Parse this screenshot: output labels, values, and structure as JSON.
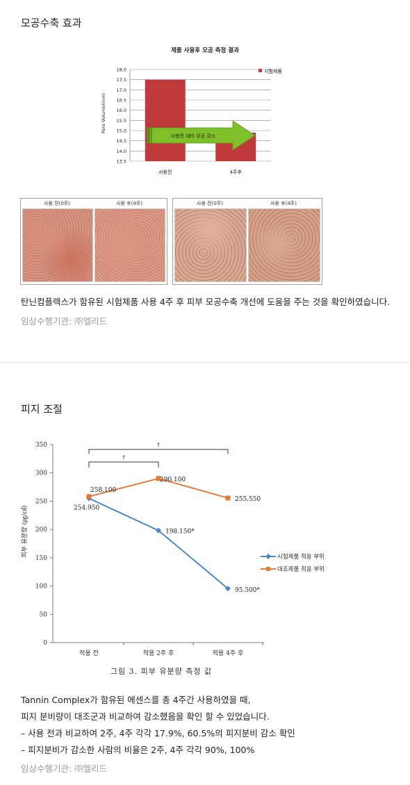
{
  "section1": {
    "title": "모공수축 효과",
    "chart_data": {
      "type": "bar",
      "title": "제품 사용후 모공 측정 결과",
      "ylabel": "Pore Volume(mm)",
      "categories": [
        "사용전",
        "4주후"
      ],
      "series": [
        {
          "name": "시험제품",
          "values": [
            17.5,
            14.9
          ]
        }
      ],
      "ylim": [
        13.5,
        18.0
      ],
      "yticks": [
        "18.0",
        "17.5",
        "17.0",
        "16.5",
        "16.0",
        "15.5",
        "15.0",
        "14.5",
        "14.0",
        "13.5"
      ],
      "annotation": "사용전 대비 모공 감소",
      "bar_color": "#c0393b",
      "arrow_color": "#7fbf2a",
      "legend_position": "top-right"
    },
    "photos": {
      "caption_before": "사용 전(0주)",
      "caption_after": "사용 후(4주)"
    },
    "description": "탄닌컴플렉스가 함유된 시험제품 사용 4주 후 피부 모공수축 개선에 도움을 주는 것을 확인하였습니다.",
    "institution": "임상수행기관: ㈜엘리드"
  },
  "section2": {
    "title": "피지 조절",
    "chart_data": {
      "type": "line",
      "ylabel": "피부 유분량 (㎍/㎠)",
      "categories": [
        "적용 전",
        "적용 2주 후",
        "적용 4주 후"
      ],
      "series": [
        {
          "name": "시험제품 적용 부위",
          "values": [
            254.95,
            198.15,
            95.5
          ],
          "labels": [
            "254.950",
            "198.150*",
            "95.500*"
          ],
          "color": "#4a86c8"
        },
        {
          "name": "대조제품 적용 부위",
          "values": [
            258.1,
            290.1,
            255.55
          ],
          "labels": [
            "258.100",
            "290.100",
            "255.550"
          ],
          "color": "#e07b39"
        }
      ],
      "ylim": [
        0,
        350
      ],
      "yticks": [
        "0",
        "50",
        "100",
        "150",
        "200",
        "250",
        "300",
        "350"
      ],
      "significance_marker": "†",
      "caption": "그림 3. 피부 유분량 측정 값",
      "legend_position": "right"
    },
    "paragraph_lines": [
      "Tannin Complex가 함유된 에센스를 총 4주간 사용하였을 때,",
      "피지 분비량이 대조군과 비교하여 감소했음을 확인 할 수 있었습니다.",
      "– 사용 전과 비교하여 2주, 4주 각각 17.9%, 60.5%의 피지분비 감소 확인",
      "– 피지분비가 감소한 사람의 비율은 2주, 4주 각각 90%, 100%"
    ],
    "institution": "임상수행기관: ㈜엘리드"
  }
}
